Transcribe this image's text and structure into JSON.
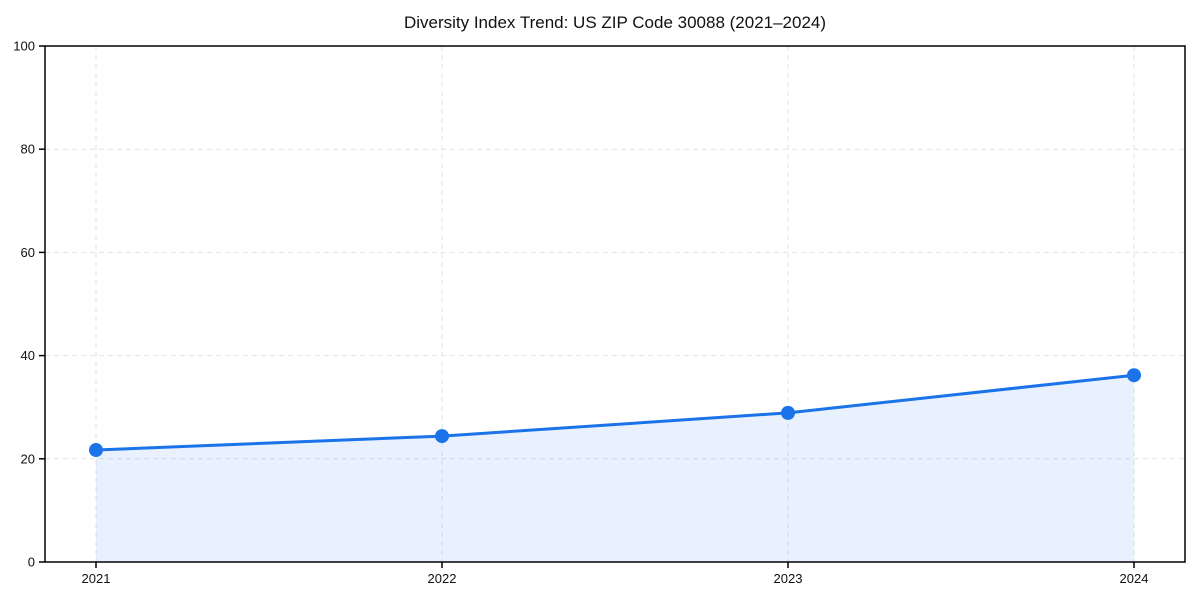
{
  "chart_data": {
    "type": "area",
    "title": "Diversity Index Trend: US ZIP Code 30088 (2021–2024)",
    "categories": [
      "2021",
      "2022",
      "2023",
      "2024"
    ],
    "values": [
      21.7,
      24.4,
      28.9,
      36.2
    ],
    "xlabel": "",
    "ylabel": "",
    "ylim": [
      0,
      100
    ],
    "yticks": [
      0,
      20,
      40,
      60,
      80,
      100
    ],
    "grid": "dashed-both-axes",
    "legend": "none",
    "marker": "circle",
    "line_color": "#1a73e8",
    "fill_color": "#1a73e8",
    "fill_opacity": 0.1,
    "grid_color": "#e2e2e2",
    "spine_color": "#000000",
    "text_color": "#111111"
  }
}
